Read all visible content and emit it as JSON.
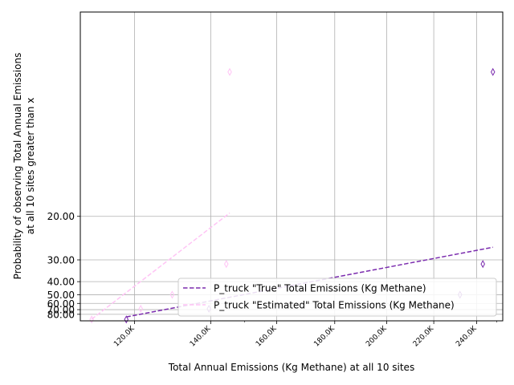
{
  "chart_data": {
    "type": "scatter",
    "title": "",
    "xlabel": "Total Annual Emissions (Kg Methane) at all 10 sites",
    "ylabel_lines": [
      "Probability of observing Total Annual Emissions",
      "at all 10 sites greater than x"
    ],
    "x_scale": "log",
    "y_scale": "reciprocal",
    "xlim": [
      107500,
      253000
    ],
    "ylim_top_to_bottom": [
      7.8,
      100
    ],
    "x_ticks": [
      {
        "value": 120000,
        "label": "120.0K"
      },
      {
        "value": 140000,
        "label": "140.0K"
      },
      {
        "value": 160000,
        "label": "160.0K"
      },
      {
        "value": 180000,
        "label": "180.0K"
      },
      {
        "value": 200000,
        "label": "200.0K"
      },
      {
        "value": 220000,
        "label": "220.0K"
      },
      {
        "value": 240000,
        "label": "240.0K"
      }
    ],
    "x_minor_ticks": [
      150000,
      250000
    ],
    "y_ticks": [
      {
        "value": 20,
        "label": "20.00"
      },
      {
        "value": 30,
        "label": "30.00"
      },
      {
        "value": 40,
        "label": "40.00"
      },
      {
        "value": 50,
        "label": "50.00"
      },
      {
        "value": 60,
        "label": "60.00"
      },
      {
        "value": 70,
        "label": "70.00"
      },
      {
        "value": 80,
        "label": "80.00"
      }
    ],
    "grid": true,
    "legend_position": "lower-right",
    "series": [
      {
        "name": "P_truck \"True\" Total Emissions (Kg Methane)",
        "color": "#7b2cae",
        "marker": "thin-diamond",
        "points": [
          {
            "x": 118000,
            "y": 95.0
          },
          {
            "x": 139500,
            "y": 68.5
          },
          {
            "x": 232000,
            "y": 50.0
          },
          {
            "x": 243000,
            "y": 31.5
          },
          {
            "x": 248000,
            "y": 9.5
          }
        ],
        "fit_line": [
          {
            "x": 118000,
            "y": 87.0
          },
          {
            "x": 248000,
            "y": 26.2
          }
        ]
      },
      {
        "name": "P_truck \"Estimated\" Total Emissions (Kg Methane)",
        "color": "#ffc4f5",
        "marker": "thin-diamond",
        "points": [
          {
            "x": 110000,
            "y": 95.0
          },
          {
            "x": 121500,
            "y": 68.5
          },
          {
            "x": 129500,
            "y": 50.0
          },
          {
            "x": 144500,
            "y": 31.5
          },
          {
            "x": 145500,
            "y": 9.5
          }
        ],
        "fit_line": [
          {
            "x": 110000,
            "y": 94.0
          },
          {
            "x": 145500,
            "y": 19.5
          }
        ]
      }
    ]
  }
}
